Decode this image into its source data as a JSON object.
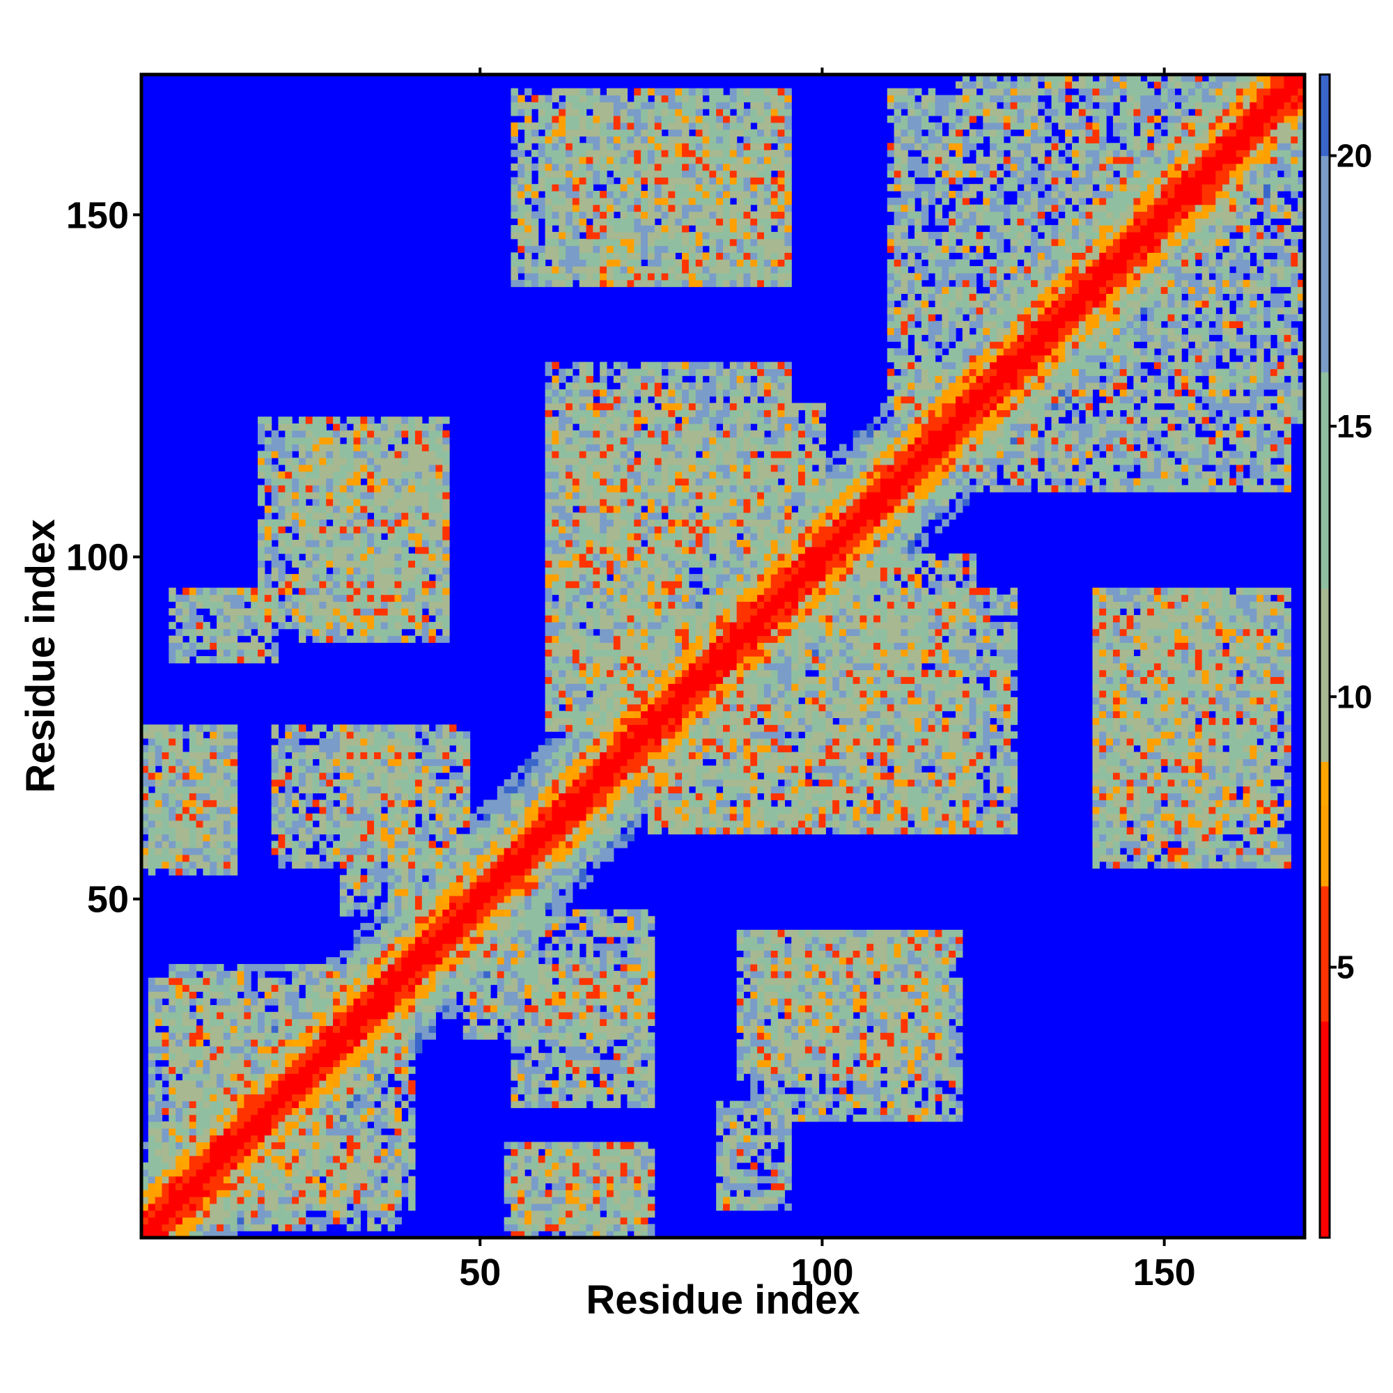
{
  "chart_data": {
    "type": "heatmap",
    "title": "",
    "xlabel": "Residue index",
    "ylabel": "Residue index",
    "n_residues": 170,
    "xlim": [
      1,
      170
    ],
    "ylim": [
      1,
      170
    ],
    "x_ticks": [
      50,
      100,
      150
    ],
    "y_ticks": [
      50,
      100,
      150
    ],
    "colorbar": {
      "ticks": [
        5,
        10,
        15,
        20
      ],
      "range": [
        0,
        21.5
      ],
      "stops": [
        {
          "value": 0.0,
          "color": "#ff0000"
        },
        {
          "value": 4.0,
          "color": "#ff3300"
        },
        {
          "value": 6.5,
          "color": "#ffa000"
        },
        {
          "value": 8.0,
          "color": "#ffa500"
        },
        {
          "value": 8.8,
          "color": "#a8b890"
        },
        {
          "value": 12.0,
          "color": "#8fbfa0"
        },
        {
          "value": 16.0,
          "color": "#7a9cc8"
        },
        {
          "value": 20.0,
          "color": "#3a66cc"
        },
        {
          "value": 21.5,
          "color": "#0000ff"
        }
      ]
    },
    "background_color": "#0000ff",
    "diagonal_color": "#ff0000",
    "contact_blocks": [
      {
        "x": [
          5,
          40
        ],
        "y": [
          5,
          40
        ]
      },
      {
        "x": [
          24,
          45
        ],
        "y": [
          88,
          118
        ]
      },
      {
        "x": [
          1,
          14
        ],
        "y": [
          55,
          75
        ]
      },
      {
        "x": [
          2,
          15
        ],
        "y": [
          10,
          38
        ]
      },
      {
        "x": [
          20,
          40
        ],
        "y": [
          55,
          75
        ]
      },
      {
        "x": [
          60,
          95
        ],
        "y": [
          75,
          128
        ]
      },
      {
        "x": [
          48,
          75
        ],
        "y": [
          30,
          48
        ]
      },
      {
        "x": [
          54,
          74
        ],
        "y": [
          2,
          14
        ]
      },
      {
        "x": [
          90,
          120
        ],
        "y": [
          18,
          45
        ]
      },
      {
        "x": [
          85,
          95
        ],
        "y": [
          5,
          20
        ]
      },
      {
        "x": [
          100,
          122
        ],
        "y": [
          60,
          100
        ]
      },
      {
        "x": [
          55,
          95
        ],
        "y": [
          140,
          168
        ]
      },
      {
        "x": [
          110,
          170
        ],
        "y": [
          120,
          168
        ]
      },
      {
        "x": [
          140,
          165
        ],
        "y": [
          60,
          95
        ]
      },
      {
        "x": [
          75,
          100
        ],
        "y": [
          60,
          80
        ]
      }
    ]
  }
}
